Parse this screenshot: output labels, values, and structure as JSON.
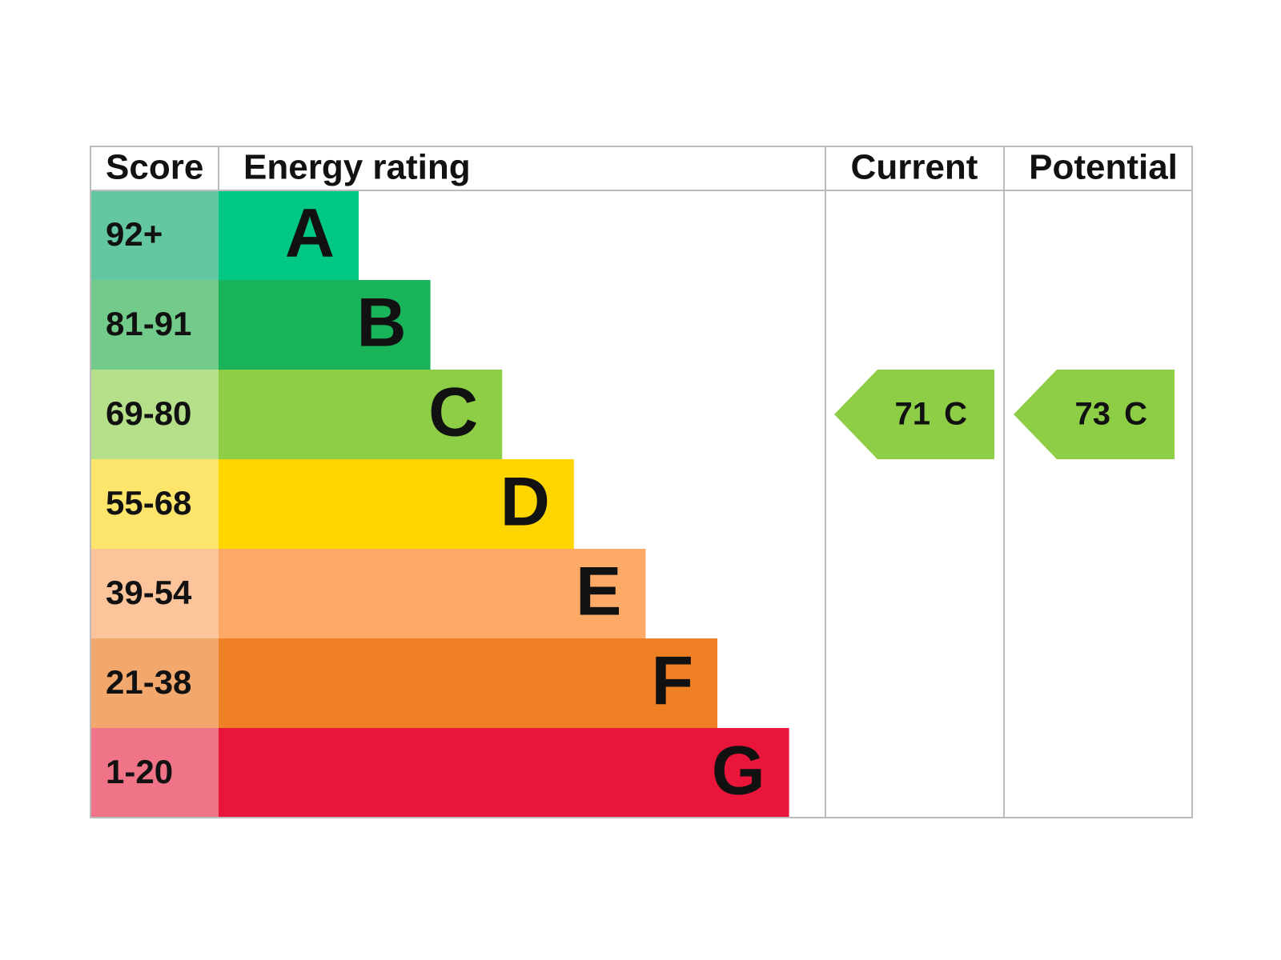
{
  "header": {
    "score": "Score",
    "energy_rating": "Energy rating",
    "current": "Current",
    "potential": "Potential"
  },
  "bands": [
    {
      "score": "92+",
      "letter": "A",
      "score_color": "#63c8a2",
      "color": "#00c781"
    },
    {
      "score": "81-91",
      "letter": "B",
      "score_color": "#72cb8a",
      "color": "#19b459"
    },
    {
      "score": "69-80",
      "letter": "C",
      "score_color": "#b5df88",
      "color": "#8dce46"
    },
    {
      "score": "55-68",
      "letter": "D",
      "score_color": "#fde46a",
      "color": "#ffd500"
    },
    {
      "score": "39-54",
      "letter": "E",
      "score_color": "#fcc49b",
      "color": "#fcaa65"
    },
    {
      "score": "21-38",
      "letter": "F",
      "score_color": "#f2a86c",
      "color": "#ef8023"
    },
    {
      "score": "1-20",
      "letter": "G",
      "score_color": "#f07487",
      "color": "#e9153b"
    }
  ],
  "current": {
    "score": 71,
    "rating": "C"
  },
  "potential": {
    "score": 73,
    "rating": "C"
  }
}
